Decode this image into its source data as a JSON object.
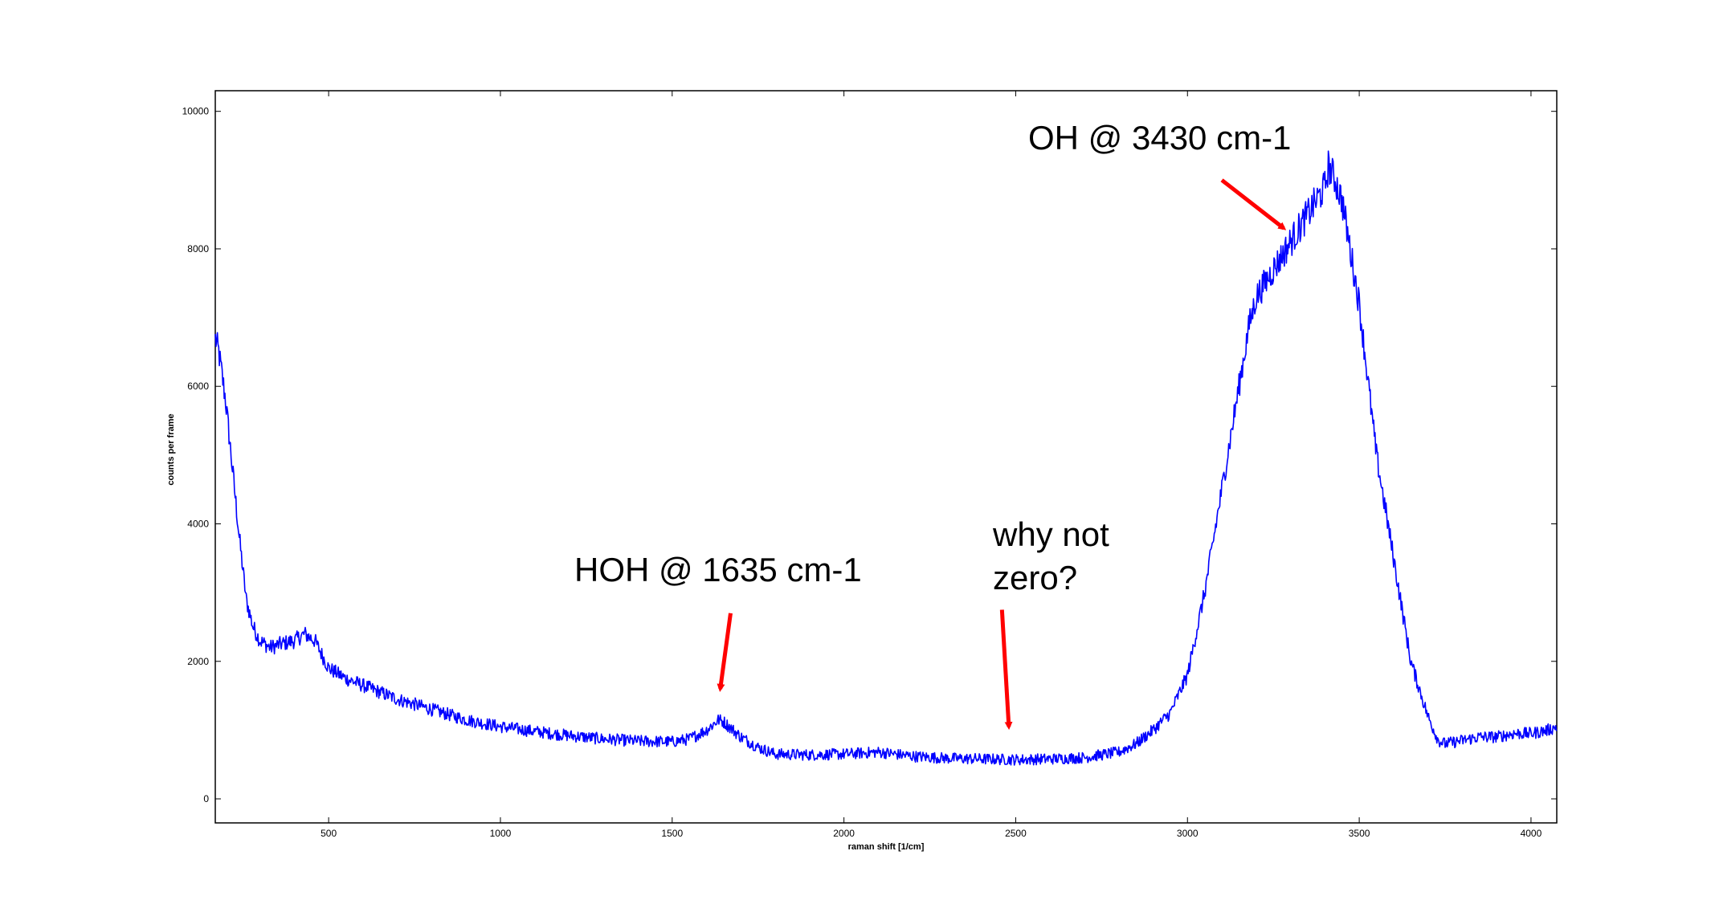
{
  "chart_data": {
    "type": "line",
    "title": "",
    "xlabel": "raman shift [1/cm]",
    "ylabel": "counts per frame",
    "xlim": [
      170,
      4075
    ],
    "ylim": [
      -350,
      10300
    ],
    "grid": false,
    "legend": "none",
    "x_ticks": [
      500,
      1000,
      1500,
      2000,
      2500,
      3000,
      3500,
      4000
    ],
    "y_ticks": [
      0,
      2000,
      4000,
      6000,
      8000,
      10000
    ],
    "x_tick_labels": [
      "500",
      "1000",
      "1500",
      "2000",
      "2500",
      "3000",
      "3500",
      "4000"
    ],
    "y_tick_labels": [
      "0",
      "2000",
      "4000",
      "6000",
      "8000",
      "10000"
    ],
    "series_color": "#0000ff",
    "series": [
      {
        "x": [
          170,
          180,
          200,
          220,
          240,
          260,
          280,
          300,
          330,
          360,
          400,
          430,
          460,
          480,
          500,
          550,
          600,
          650,
          700,
          800,
          900,
          1000,
          1100,
          1200,
          1300,
          1400,
          1500,
          1550,
          1600,
          1635,
          1650,
          1700,
          1750,
          1800,
          1900,
          2000,
          2100,
          2200,
          2300,
          2400,
          2500,
          2600,
          2700,
          2800,
          2850,
          2900,
          2950,
          3000,
          3050,
          3100,
          3150,
          3180,
          3200,
          3250,
          3300,
          3350,
          3400,
          3410,
          3430,
          3450,
          3500,
          3550,
          3600,
          3650,
          3700,
          3730,
          3750,
          3800,
          3850,
          3900,
          3950,
          4000,
          4050,
          4075
        ],
        "y": [
          6700,
          6500,
          5800,
          4800,
          3800,
          2900,
          2500,
          2300,
          2200,
          2250,
          2300,
          2400,
          2300,
          2100,
          1900,
          1750,
          1650,
          1550,
          1450,
          1300,
          1150,
          1050,
          980,
          920,
          870,
          840,
          830,
          870,
          1000,
          1150,
          1120,
          900,
          750,
          650,
          640,
          650,
          680,
          620,
          590,
          580,
          570,
          580,
          600,
          680,
          800,
          1000,
          1250,
          1800,
          3000,
          4500,
          6000,
          6900,
          7300,
          7700,
          8100,
          8500,
          8900,
          9200,
          9000,
          8700,
          7200,
          5000,
          3500,
          2000,
          1200,
          850,
          800,
          850,
          900,
          900,
          950,
          950,
          1000,
          1050
        ]
      }
    ],
    "annotations": [
      {
        "text": "OH @ 3430 cm-1",
        "arrow_from": [
          3100,
          9000
        ],
        "arrow_to": [
          3280,
          8300
        ]
      },
      {
        "text": "HOH @ 1635 cm-1",
        "arrow_from": [
          1670,
          2700
        ],
        "arrow_to": [
          1640,
          1600
        ]
      },
      {
        "text_lines": [
          "why not",
          "zero?"
        ],
        "arrow_from": [
          2460,
          2750
        ],
        "arrow_to": [
          2480,
          1050
        ]
      }
    ]
  }
}
